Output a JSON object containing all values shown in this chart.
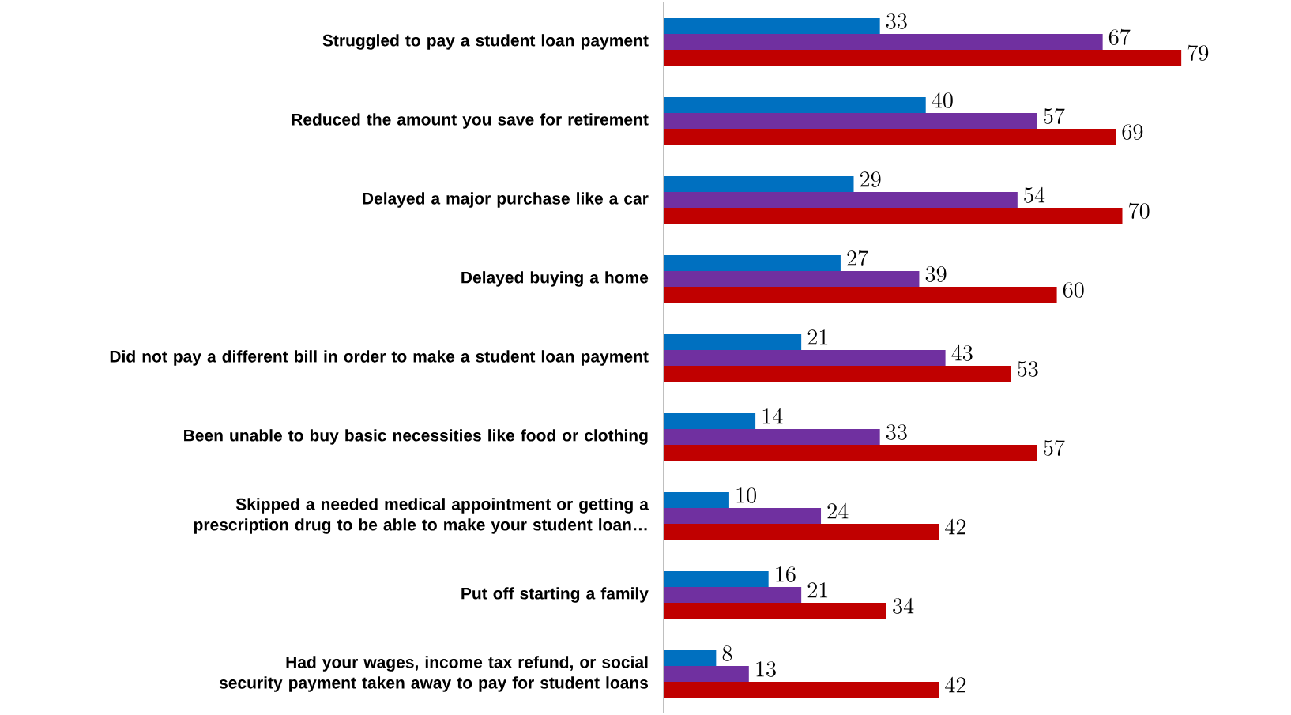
{
  "chart_data": {
    "type": "bar",
    "orientation": "horizontal",
    "data_labels": true,
    "categories": [
      "Struggled to pay a student loan payment",
      "Reduced the amount you save for retirement",
      "Delayed a major purchase like a car",
      "Delayed buying a home",
      "Did not pay a different bill in order to make a student loan payment",
      "Been unable to buy basic necessities like food or clothing",
      "Skipped a needed medical appointment or getting a prescription drug to be able to make your student loan…",
      "Put off starting a family",
      "Had your wages, income tax refund, or social security payment taken away to pay for student loans"
    ],
    "series": [
      {
        "color": "#0070c0",
        "values": [
          33,
          40,
          29,
          27,
          21,
          14,
          10,
          16,
          8
        ]
      },
      {
        "color": "#7030a0",
        "values": [
          67,
          57,
          54,
          39,
          43,
          33,
          24,
          21,
          13
        ]
      },
      {
        "color": "#c00000",
        "values": [
          79,
          69,
          70,
          60,
          53,
          57,
          42,
          34,
          42
        ]
      }
    ]
  }
}
